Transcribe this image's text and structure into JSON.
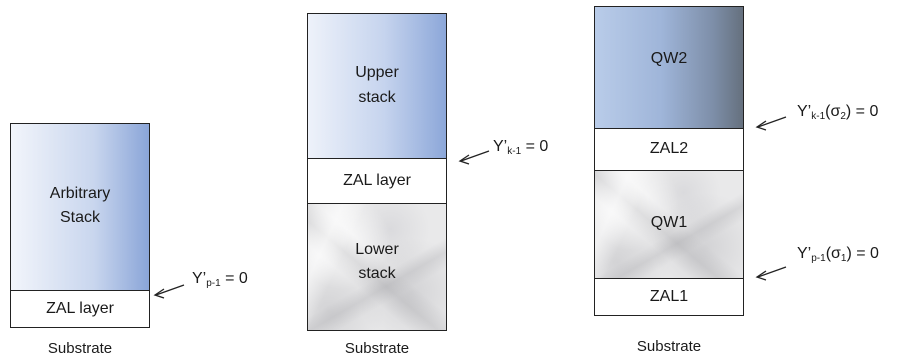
{
  "stack1": {
    "top_label_1": "Arbitrary",
    "top_label_2": "Stack",
    "zal_label": "ZAL layer",
    "substrate": "Substrate",
    "eq_main": "Y’",
    "eq_sub": "p-1",
    "eq_tail": " = 0"
  },
  "stack2": {
    "top_label_1": "Upper",
    "top_label_2": "stack",
    "zal_label": "ZAL layer",
    "bottom_label_1": "Lower",
    "bottom_label_2": "stack",
    "substrate": "Substrate",
    "eq_main": "Y’",
    "eq_sub": "k-1",
    "eq_tail": " = 0"
  },
  "stack3": {
    "qw2_label": "QW2",
    "zal2_label": "ZAL2",
    "qw1_label": "QW1",
    "zal1_label": "ZAL1",
    "substrate": "Substrate",
    "eq_top_main": "Y’",
    "eq_top_sub": "k-1",
    "eq_top_arg": "(σ",
    "eq_top_arg_sub": "2",
    "eq_top_tail": ") = 0",
    "eq_bot_main": "Y’",
    "eq_bot_sub": "p-1",
    "eq_bot_arg": "(σ",
    "eq_bot_arg_sub": "1",
    "eq_bot_tail": ") = 0"
  }
}
